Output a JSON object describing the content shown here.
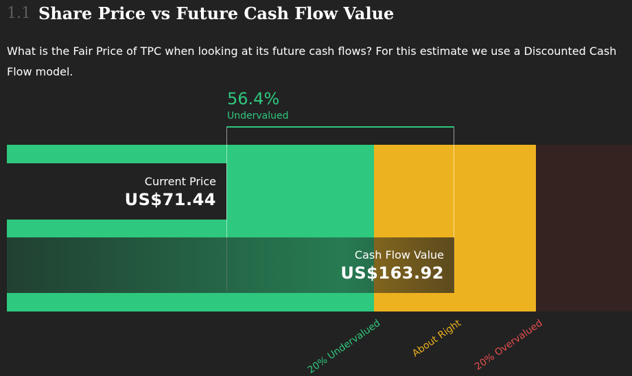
{
  "header": {
    "section_number": "1.1",
    "title": "Share Price vs Future Cash Flow Value"
  },
  "description": "What is the Fair Price of TPC when looking at its future cash flows? For this estimate we use a Discounted Cash Flow model.",
  "valuation": {
    "percent_label": "56.4%",
    "status": "Undervalued",
    "current_price_label": "Current Price",
    "current_price": "US$71.44",
    "fair_value_label": "Cash Flow Value",
    "fair_value": "US$163.92"
  },
  "zones": {
    "undervalued": "20% Undervalued",
    "about_right": "About Right",
    "overvalued": "20% Overvalued"
  },
  "colors": {
    "undervalued": "#2ec87e",
    "about_right": "#edb21f",
    "overvalued": "#342321",
    "overvalued_text": "#e84e4e",
    "background": "#222222"
  },
  "chart_data": {
    "type": "bar",
    "categories": [
      "Current Price",
      "Cash Flow Value"
    ],
    "values": [
      71.44,
      163.92
    ],
    "unit": "US$",
    "discount_percent": 56.4,
    "zones": [
      {
        "name": "20% Undervalued",
        "color": "#2ec87e"
      },
      {
        "name": "About Right",
        "color": "#edb21f"
      },
      {
        "name": "20% Overvalued",
        "color": "#342321"
      }
    ]
  }
}
